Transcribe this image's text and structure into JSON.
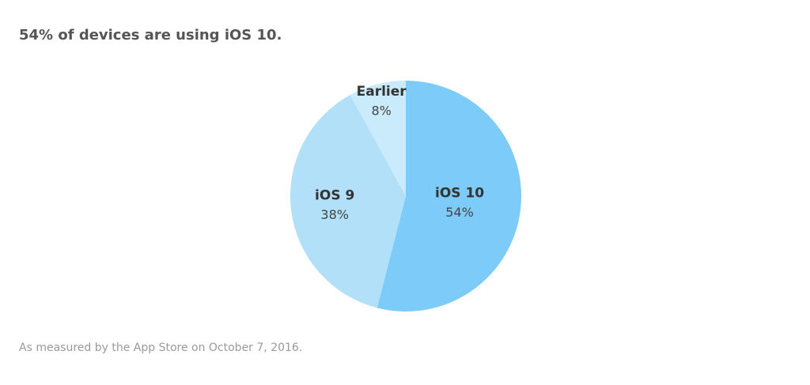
{
  "chart_data": {
    "type": "pie",
    "title": "54% of devices are using iOS 10.",
    "footnote": "As measured by the App Store on October 7, 2016.",
    "categories": [
      "iOS 10",
      "iOS 9",
      "Earlier"
    ],
    "values": [
      54,
      38,
      8
    ],
    "value_labels": [
      "54%",
      "38%",
      "8%"
    ],
    "colors": [
      "#7dcbf8",
      "#b3e0f9",
      "#c9ebfb"
    ]
  }
}
